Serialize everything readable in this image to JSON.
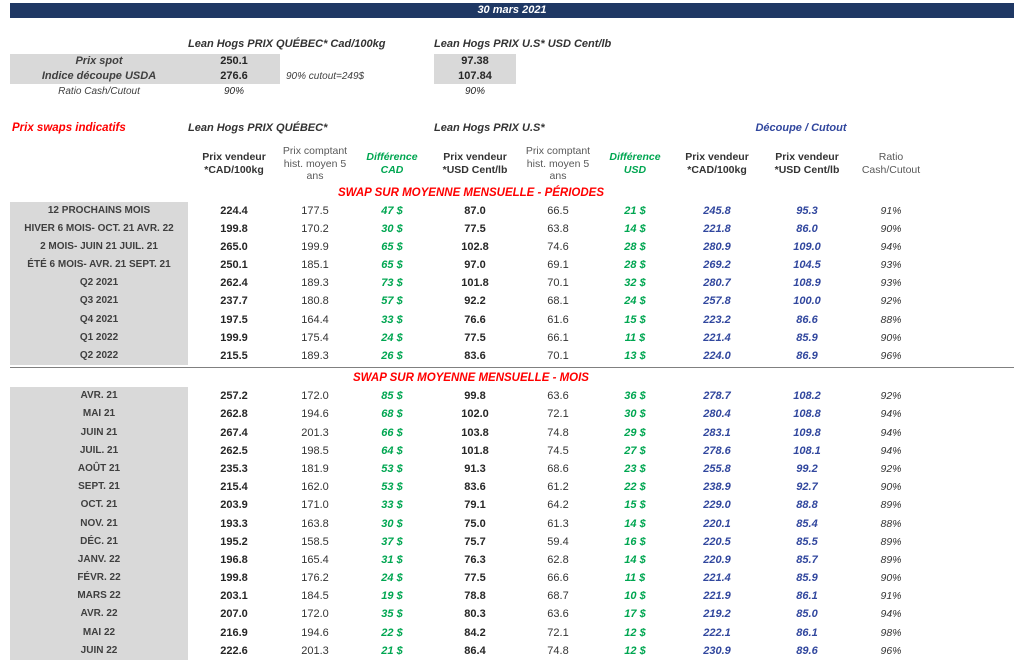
{
  "title_bar": {
    "date": "30 mars 2021"
  },
  "colors": {
    "band_navy": "#1F3864",
    "red_accent": "#FF0000",
    "green_accent": "#00A651",
    "navy_values": "#31479E",
    "gray_cell": "#D9D9D9"
  },
  "spot_section": {
    "quebec_header": "Lean Hogs PRIX QUÉBEC* Cad/100kg",
    "us_header": "Lean Hogs PRIX U.S* USD Cent/lb",
    "cutout_note": "90% cutout=249$",
    "rows": [
      {
        "label": "Prix spot",
        "quebec": "250.1",
        "us": "97.38"
      },
      {
        "label": "Indice découpe USDA",
        "quebec": "276.6",
        "us": "107.84"
      },
      {
        "label": "Ratio Cash/Cutout",
        "quebec": "90%",
        "us": "90%"
      }
    ]
  },
  "swaps": {
    "title": "Prix swaps indicatifs",
    "group_headers": {
      "quebec": "Lean Hogs PRIX QUÉBEC*",
      "us": "Lean Hogs PRIX U.S*",
      "cutout": "Découpe / Cutout"
    },
    "column_headers": [
      "Prix vendeur\n*CAD/100kg",
      "Prix comptant\nhist. moyen 5\nans",
      "Différence\nCAD",
      "Prix vendeur\n*USD Cent/lb",
      "Prix comptant\nhist. moyen 5\nans",
      "Différence\nUSD",
      "Prix vendeur\n*CAD/100kg",
      "Prix vendeur\n*USD Cent/lb",
      "Ratio\nCash/Cutout"
    ],
    "sections": [
      {
        "heading": "SWAP SUR MOYENNE MENSUELLE - PÉRIODES",
        "rows": [
          {
            "label": "12 PROCHAINS MOIS",
            "values": [
              "224.4",
              "177.5",
              "47 $",
              "87.0",
              "66.5",
              "21 $",
              "245.8",
              "95.3",
              "91%"
            ]
          },
          {
            "label": "HIVER 6 MOIS- OCT. 21 AVR. 22",
            "values": [
              "199.8",
              "170.2",
              "30 $",
              "77.5",
              "63.8",
              "14 $",
              "221.8",
              "86.0",
              "90%"
            ]
          },
          {
            "label": "2 MOIS- JUIN 21 JUIL. 21",
            "values": [
              "265.0",
              "199.9",
              "65 $",
              "102.8",
              "74.6",
              "28 $",
              "280.9",
              "109.0",
              "94%"
            ]
          },
          {
            "label": "ÉTÉ 6 MOIS- AVR. 21 SEPT. 21",
            "values": [
              "250.1",
              "185.1",
              "65 $",
              "97.0",
              "69.1",
              "28 $",
              "269.2",
              "104.5",
              "93%"
            ]
          },
          {
            "label": "Q2 2021",
            "values": [
              "262.4",
              "189.3",
              "73 $",
              "101.8",
              "70.1",
              "32 $",
              "280.7",
              "108.9",
              "93%"
            ]
          },
          {
            "label": "Q3 2021",
            "values": [
              "237.7",
              "180.8",
              "57 $",
              "92.2",
              "68.1",
              "24 $",
              "257.8",
              "100.0",
              "92%"
            ]
          },
          {
            "label": "Q4 2021",
            "values": [
              "197.5",
              "164.4",
              "33 $",
              "76.6",
              "61.6",
              "15 $",
              "223.2",
              "86.6",
              "88%"
            ]
          },
          {
            "label": "Q1 2022",
            "values": [
              "199.9",
              "175.4",
              "24 $",
              "77.5",
              "66.1",
              "11 $",
              "221.4",
              "85.9",
              "90%"
            ]
          },
          {
            "label": "Q2 2022",
            "values": [
              "215.5",
              "189.3",
              "26 $",
              "83.6",
              "70.1",
              "13 $",
              "224.0",
              "86.9",
              "96%"
            ]
          }
        ]
      },
      {
        "heading": "SWAP SUR MOYENNE MENSUELLE - MOIS",
        "rows": [
          {
            "label": "AVR. 21",
            "values": [
              "257.2",
              "172.0",
              "85 $",
              "99.8",
              "63.6",
              "36 $",
              "278.7",
              "108.2",
              "92%"
            ]
          },
          {
            "label": "MAI 21",
            "values": [
              "262.8",
              "194.6",
              "68 $",
              "102.0",
              "72.1",
              "30 $",
              "280.4",
              "108.8",
              "94%"
            ]
          },
          {
            "label": "JUIN 21",
            "values": [
              "267.4",
              "201.3",
              "66 $",
              "103.8",
              "74.8",
              "29 $",
              "283.1",
              "109.8",
              "94%"
            ]
          },
          {
            "label": "JUIL. 21",
            "values": [
              "262.5",
              "198.5",
              "64 $",
              "101.8",
              "74.5",
              "27 $",
              "278.6",
              "108.1",
              "94%"
            ]
          },
          {
            "label": "AOÛT 21",
            "values": [
              "235.3",
              "181.9",
              "53 $",
              "91.3",
              "68.6",
              "23 $",
              "255.8",
              "99.2",
              "92%"
            ]
          },
          {
            "label": "SEPT. 21",
            "values": [
              "215.4",
              "162.0",
              "53 $",
              "83.6",
              "61.2",
              "22 $",
              "238.9",
              "92.7",
              "90%"
            ]
          },
          {
            "label": "OCT. 21",
            "values": [
              "203.9",
              "171.0",
              "33 $",
              "79.1",
              "64.2",
              "15 $",
              "229.0",
              "88.8",
              "89%"
            ]
          },
          {
            "label": "NOV. 21",
            "values": [
              "193.3",
              "163.8",
              "30 $",
              "75.0",
              "61.3",
              "14 $",
              "220.1",
              "85.4",
              "88%"
            ]
          },
          {
            "label": "DÉC. 21",
            "values": [
              "195.2",
              "158.5",
              "37 $",
              "75.7",
              "59.4",
              "16 $",
              "220.5",
              "85.5",
              "89%"
            ]
          },
          {
            "label": "JANV. 22",
            "values": [
              "196.8",
              "165.4",
              "31 $",
              "76.3",
              "62.8",
              "14 $",
              "220.9",
              "85.7",
              "89%"
            ]
          },
          {
            "label": "FÉVR. 22",
            "values": [
              "199.8",
              "176.2",
              "24 $",
              "77.5",
              "66.6",
              "11 $",
              "221.4",
              "85.9",
              "90%"
            ]
          },
          {
            "label": "MARS 22",
            "values": [
              "203.1",
              "184.5",
              "19 $",
              "78.8",
              "68.7",
              "10 $",
              "221.9",
              "86.1",
              "91%"
            ]
          },
          {
            "label": "AVR. 22",
            "values": [
              "207.0",
              "172.0",
              "35 $",
              "80.3",
              "63.6",
              "17 $",
              "219.2",
              "85.0",
              "94%"
            ]
          },
          {
            "label": "MAI 22",
            "values": [
              "216.9",
              "194.6",
              "22 $",
              "84.2",
              "72.1",
              "12 $",
              "222.1",
              "86.1",
              "98%"
            ]
          },
          {
            "label": "JUIN 22",
            "values": [
              "222.6",
              "201.3",
              "21 $",
              "86.4",
              "74.8",
              "12 $",
              "230.9",
              "89.6",
              "96%"
            ]
          }
        ]
      }
    ]
  }
}
